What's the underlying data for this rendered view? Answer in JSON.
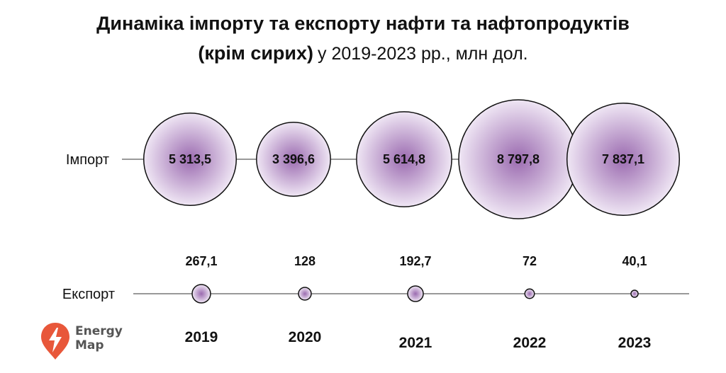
{
  "title": {
    "line1": "Динаміка імпорту та експорту нафти та нафтопродуктів",
    "line2_bold": "(крім сирих)",
    "line2_normal": "у 2019-2023 рр., млн дол."
  },
  "logo": {
    "line1": "Energy",
    "line2": "Map",
    "color": "#e8573a"
  },
  "chart_data": {
    "type": "bubble",
    "categories": [
      "2019",
      "2020",
      "2021",
      "2022",
      "2023"
    ],
    "series": [
      {
        "name": "Імпорт",
        "values": [
          5313.5,
          3396.6,
          5614.8,
          8797.8,
          7837.1
        ],
        "labels": [
          "5 313,5",
          "3 396,6",
          "5 614,8",
          "8 797,8",
          "7 837,1"
        ]
      },
      {
        "name": "Експорт",
        "values": [
          267.1,
          128,
          192.7,
          72,
          40.1
        ],
        "labels": [
          "267,1",
          "128",
          "192,7",
          "72",
          "40,1"
        ]
      }
    ],
    "colors": {
      "bubble_center": "#9b6bb0",
      "bubble_edge": "#efe6f4",
      "stroke": "#111111"
    }
  }
}
